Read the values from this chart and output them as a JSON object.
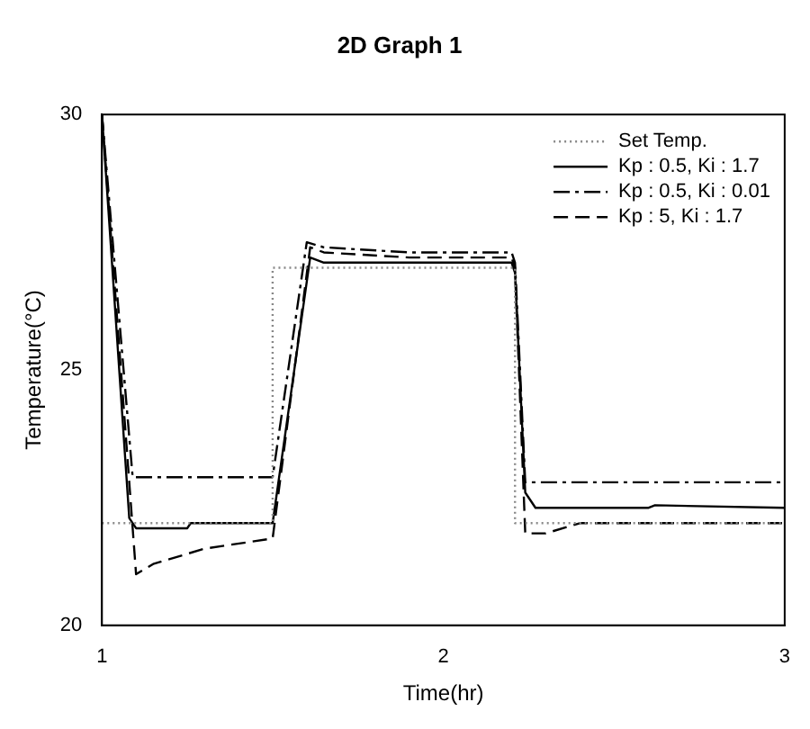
{
  "chart_data": {
    "type": "line",
    "title": "2D Graph 1",
    "xlabel": "Time(hr)",
    "ylabel": "Temperature(°C)",
    "xlim": [
      1,
      3
    ],
    "xticks": [
      1,
      2,
      3
    ],
    "ylim": [
      20,
      30
    ],
    "yticks": [
      20,
      25,
      30
    ],
    "grid": false,
    "legend": "top right",
    "marker": "none",
    "series": [
      {
        "name": "Set Temp.",
        "color": "#888888",
        "line_style": "dotted",
        "x": [
          1,
          1.5,
          1.5,
          2.21,
          2.21,
          3
        ],
        "values": [
          22,
          22,
          27,
          27,
          22,
          22
        ]
      },
      {
        "name": "Kp : 0.5, Ki : 1.7",
        "color": "#000000",
        "line_style": "solid",
        "x": [
          1,
          1.08,
          1.1,
          1.25,
          1.26,
          1.5,
          1.61,
          1.65,
          2.2,
          2.21,
          2.24,
          2.27,
          2.6,
          2.62,
          3
        ],
        "values": [
          30,
          22.1,
          21.9,
          21.9,
          22,
          22,
          27.2,
          27.1,
          27.1,
          26.9,
          22.6,
          22.3,
          22.3,
          22.35,
          22.3
        ]
      },
      {
        "name": "Kp : 0.5, Ki : 0.01",
        "color": "#000000",
        "line_style": "dashdot",
        "x": [
          1,
          1.09,
          1.5,
          1.6,
          1.65,
          1.9,
          2.2,
          2.21,
          2.24,
          3
        ],
        "values": [
          30,
          22.9,
          22.9,
          27.5,
          27.4,
          27.3,
          27.3,
          27.1,
          22.8,
          22.8
        ]
      },
      {
        "name": "Kp : 5, Ki : 1.7",
        "color": "#000000",
        "line_style": "dashed",
        "x": [
          1,
          1.1,
          1.15,
          1.3,
          1.5,
          1.61,
          1.65,
          1.9,
          2.2,
          2.21,
          2.24,
          2.3,
          2.4,
          3
        ],
        "values": [
          30,
          21.0,
          21.2,
          21.5,
          21.7,
          27.4,
          27.3,
          27.2,
          27.2,
          27.0,
          21.8,
          21.8,
          22.0,
          22.0
        ]
      }
    ]
  }
}
